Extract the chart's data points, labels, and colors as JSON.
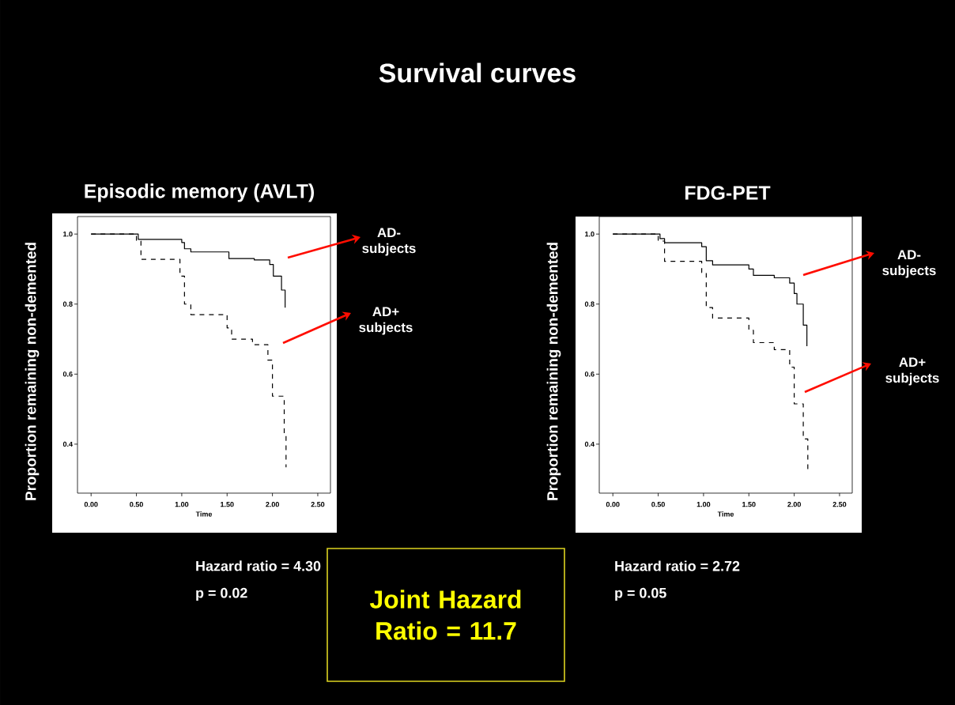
{
  "chart_data": [
    {
      "type": "step",
      "title": "Episodic memory (AVLT)",
      "xlabel": "Time",
      "ylabel": "Proportion remaining non-demented",
      "xlim": [
        -0.15,
        2.64
      ],
      "ylim": [
        0.26,
        1.05
      ],
      "xticks": [
        {
          "value": 0,
          "label": "0.00"
        },
        {
          "value": 0.5,
          "label": "0.50"
        },
        {
          "value": 1,
          "label": "1.00"
        },
        {
          "value": 1.5,
          "label": "1.50"
        },
        {
          "value": 2,
          "label": "2.00"
        },
        {
          "value": 2.5,
          "label": "2.50"
        }
      ],
      "yticks": [
        {
          "value": 0.4,
          "label": "0.4"
        },
        {
          "value": 0.6,
          "label": "0.6"
        },
        {
          "value": 0.8,
          "label": "0.8"
        },
        {
          "value": 1,
          "label": "1.0"
        }
      ],
      "series": [
        {
          "name": "AD- subjects",
          "color": "#000000",
          "line_style": "solid",
          "x": [
            0,
            0.52,
            1.0,
            1.03,
            1.1,
            1.52,
            1.8,
            1.97,
            2.01,
            2.1,
            2.14
          ],
          "values": [
            1.0,
            0.985,
            0.976,
            0.958,
            0.949,
            0.93,
            0.926,
            0.913,
            0.88,
            0.84,
            0.79
          ]
        },
        {
          "name": "AD+ subjects",
          "color": "#000000",
          "line_style": "dashed",
          "x": [
            0,
            0.5,
            0.55,
            0.98,
            1.03,
            1.1,
            1.5,
            1.55,
            1.78,
            1.95,
            2.0,
            2.13,
            2.15
          ],
          "values": [
            1.0,
            0.98,
            0.928,
            0.88,
            0.8,
            0.77,
            0.732,
            0.7,
            0.684,
            0.64,
            0.537,
            0.43,
            0.334
          ]
        }
      ],
      "annotations": [
        "Hazard ratio = 4.30",
        "p = 0.02"
      ]
    },
    {
      "type": "step",
      "title": "FDG-PET",
      "xlabel": "Time",
      "ylabel": "Proportion remaining non-demented",
      "xlim": [
        -0.15,
        2.64
      ],
      "ylim": [
        0.26,
        1.05
      ],
      "xticks": [
        {
          "value": 0,
          "label": "0.00"
        },
        {
          "value": 0.5,
          "label": "0.50"
        },
        {
          "value": 1,
          "label": "1.00"
        },
        {
          "value": 1.5,
          "label": "1.50"
        },
        {
          "value": 2,
          "label": "2.00"
        },
        {
          "value": 2.5,
          "label": "2.50"
        }
      ],
      "yticks": [
        {
          "value": 0.4,
          "label": "0.4"
        },
        {
          "value": 0.6,
          "label": "0.6"
        },
        {
          "value": 0.8,
          "label": "0.8"
        },
        {
          "value": 1,
          "label": "1.0"
        }
      ],
      "series": [
        {
          "name": "AD- subjects",
          "color": "#000000",
          "line_style": "solid",
          "x": [
            0,
            0.52,
            0.57,
            0.98,
            1.03,
            1.1,
            1.5,
            1.55,
            1.78,
            1.95,
            2.0,
            2.03,
            2.1,
            2.14
          ],
          "values": [
            1.0,
            0.987,
            0.975,
            0.964,
            0.924,
            0.912,
            0.9,
            0.882,
            0.875,
            0.86,
            0.83,
            0.8,
            0.74,
            0.68
          ]
        },
        {
          "name": "AD+ subjects",
          "color": "#000000",
          "line_style": "dashed",
          "x": [
            0,
            0.5,
            0.57,
            0.98,
            1.03,
            1.1,
            1.5,
            1.55,
            1.78,
            1.95,
            2.0,
            2.1,
            2.15
          ],
          "values": [
            1.0,
            0.98,
            0.922,
            0.89,
            0.79,
            0.76,
            0.725,
            0.69,
            0.67,
            0.62,
            0.515,
            0.415,
            0.32
          ]
        }
      ],
      "annotations": [
        "Hazard ratio = 2.72",
        "p = 0.05"
      ]
    },
    {
      "type": "other",
      "title": "Survival curves",
      "annotations": [
        "Joint Hazard Ratio = 11.7"
      ]
    }
  ]
}
